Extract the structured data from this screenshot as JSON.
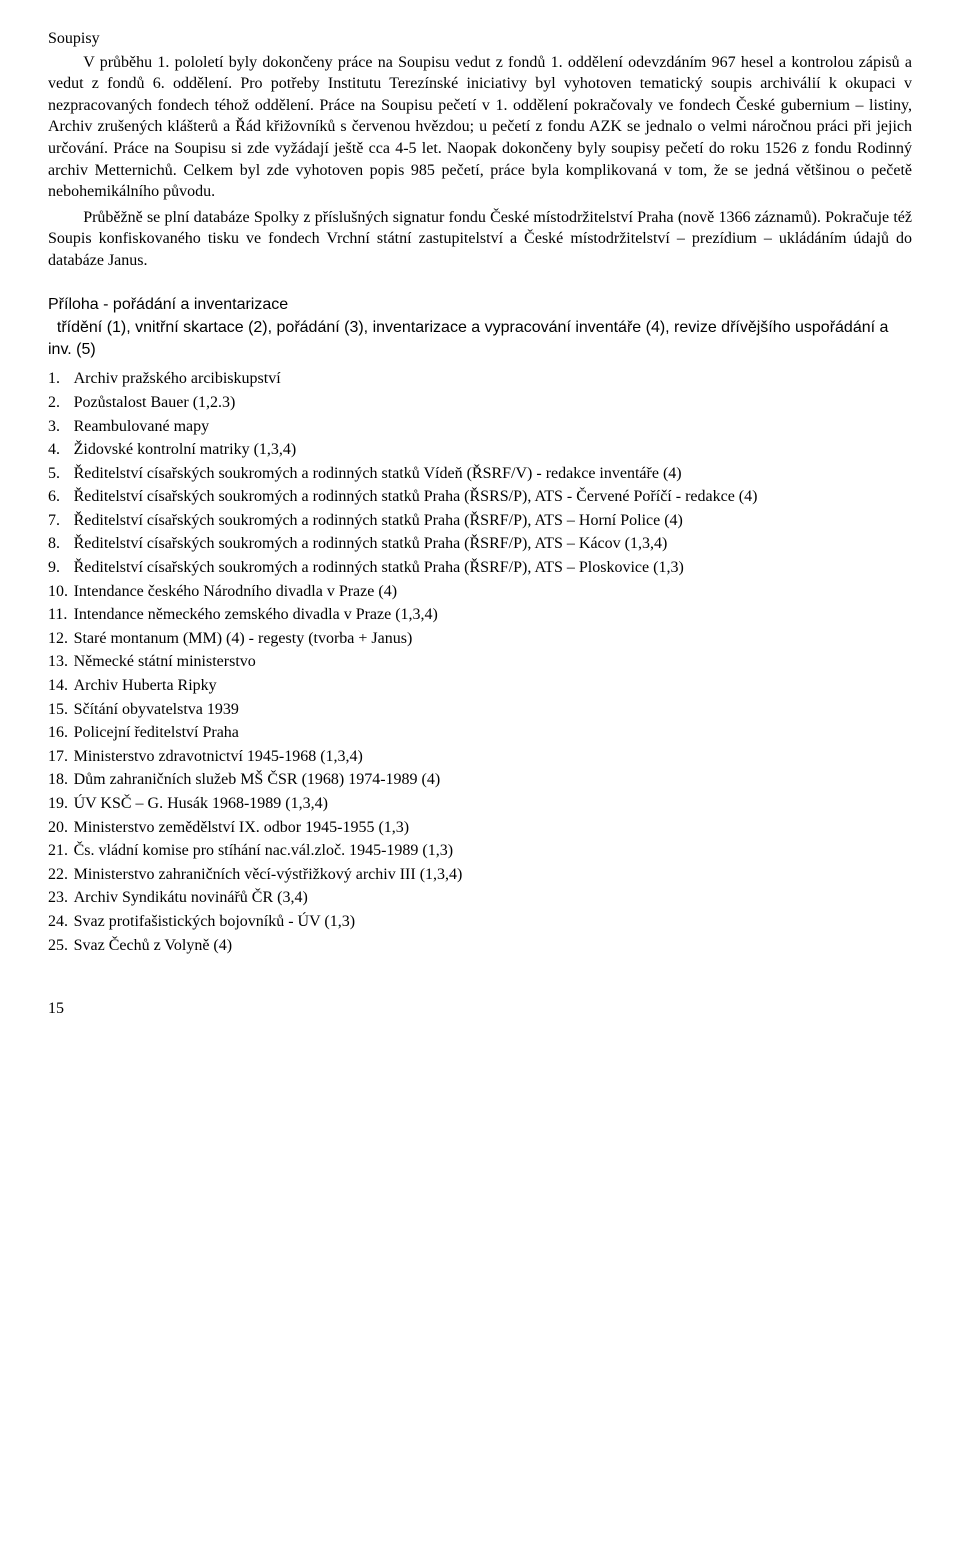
{
  "heading": "Soupisy",
  "para1": "V průběhu 1. pololetí byly dokončeny práce na Soupisu vedut z fondů 1. oddělení odevzdáním 967 hesel a kontrolou zápisů a vedut z fondů 6. oddělení. Pro potřeby Institutu Terezínské iniciativy byl vyhotoven tematický soupis archiválií k okupaci v nezpracovaných fondech téhož oddělení. Práce na Soupisu pečetí v 1. oddělení pokračovaly ve  fondech České gubernium – listiny, Archiv zrušených klášterů a Řád křižovníků s červenou hvězdou; u  pečetí z fondu AZK se jednalo o velmi náročnou práci při jejich určování. Práce na Soupisu si zde vyžádají ještě cca 4-5 let. Naopak dokončeny byly soupisy pečetí do roku 1526 z fondu Rodinný archiv Metternichů. Celkem byl zde vyhotoven popis 985 pečetí, práce byla komplikovaná v tom, že se jedná většinou o pečetě nebohemikálního původu.",
  "para2": "Průběžně se plní databáze Spolky z příslušných signatur fondu České místodržitelství Praha (nově 1366 záznamů). Pokračuje též Soupis konfiskovaného tisku ve fondech Vrchní státní zastupitelství a České místodržitelství – prezídium – ukládáním údajů do databáze Janus.",
  "attachment": {
    "title": "Příloha - pořádání a inventarizace",
    "subtitle": "  třídění (1), vnitřní skartace (2), pořádání (3), inventarizace a vypracování inventáře (4), revize dřívějšího uspořádání a inv. (5)"
  },
  "items": [
    {
      "text": "Archiv pražského arcibiskupství"
    },
    {
      "text": "Pozůstalost Bauer (1,2.3)"
    },
    {
      "text": "Reambulované mapy"
    },
    {
      "text": "Židovské kontrolní matriky (1,3,4)"
    },
    {
      "text": "Ředitelství císařských soukromých a rodinných statků Vídeň (ŘSRF/V) - redakce inventáře (4)"
    },
    {
      "text": "Ředitelství císařských soukromých a rodinných statků Praha (ŘSRS/P),  ATS - Červené Poříčí - redakce (4)"
    },
    {
      "text": "Ředitelství císařských soukromých a rodinných statků Praha (ŘSRF/P),  ATS – Horní Police (4)"
    },
    {
      "text": "Ředitelství císařských soukromých a rodinných statků Praha (ŘSRF/P),  ATS – Kácov (1,3,4)"
    },
    {
      "text": "Ředitelství císařských soukromých a rodinných statků Praha (ŘSRF/P),  ATS – Ploskovice (1,3)"
    },
    {
      "text": "Intendance českého Národního divadla v Praze  (4)"
    },
    {
      "text": "Intendance německého zemského divadla v Praze (1,3,4)"
    },
    {
      "text": "Staré montanum (MM) (4) - regesty (tvorba + Janus)"
    },
    {
      "text": "Německé státní ministerstvo"
    },
    {
      "text": "Archiv Huberta Ripky"
    },
    {
      "text": "Sčítání obyvatelstva 1939"
    },
    {
      "text": "Policejní ředitelství Praha"
    },
    {
      "text": "Ministerstvo zdravotnictví 1945-1968  (1,3,4)"
    },
    {
      "text": "Dům zahraničních služeb MŠ ČSR (1968) 1974-1989 (4)"
    },
    {
      "text": "ÚV KSČ – G. Husák 1968-1989 (1,3,4)"
    },
    {
      "text": "Ministerstvo zemědělství IX. odbor 1945-1955 (1,3)"
    },
    {
      "text": "Čs. vládní komise pro stíhání nac.vál.zloč. 1945-1989 (1,3)"
    },
    {
      "text": "Ministerstvo zahraničních věcí-výstřižkový archiv III (1,3,4)"
    },
    {
      "text": "Archiv Syndikátu novinářů ČR (3,4)"
    },
    {
      "text": "Svaz protifašistických bojovníků - ÚV (1,3)"
    },
    {
      "text": "Svaz Čechů z Volyně (4)"
    }
  ],
  "page_number": "15"
}
